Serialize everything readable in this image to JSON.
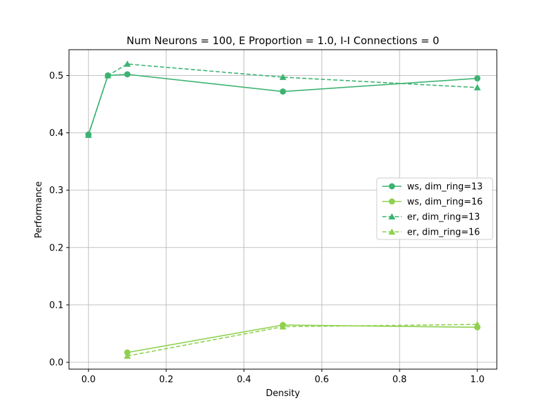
{
  "chart_data": {
    "type": "line",
    "title": "Num Neurons = 100, E Proportion = 1.0, I-I Connections = 0",
    "xlabel": "Density",
    "ylabel": "Performance",
    "xlim": [
      -0.05,
      1.05
    ],
    "ylim": [
      -0.012,
      0.545
    ],
    "xticks": [
      0.0,
      0.2,
      0.4,
      0.6,
      0.8,
      1.0
    ],
    "xtick_labels": [
      "0.0",
      "0.2",
      "0.4",
      "0.6",
      "0.8",
      "1.0"
    ],
    "yticks": [
      0.0,
      0.1,
      0.2,
      0.3,
      0.4,
      0.5
    ],
    "ytick_labels": [
      "0.0",
      "0.1",
      "0.2",
      "0.3",
      "0.4",
      "0.5"
    ],
    "grid": true,
    "legend_position": "center-right",
    "series": [
      {
        "name": "ws, dim_ring=13",
        "color": "#3cb371",
        "linestyle": "solid",
        "marker": "circle",
        "x": [
          0.0,
          0.05,
          0.1,
          0.5,
          1.0
        ],
        "y": [
          0.397,
          0.5,
          0.502,
          0.472,
          0.495
        ]
      },
      {
        "name": "ws, dim_ring=16",
        "color": "#8fd14f",
        "linestyle": "solid",
        "marker": "circle",
        "x": [
          0.1,
          0.5,
          1.0
        ],
        "y": [
          0.017,
          0.065,
          0.061
        ]
      },
      {
        "name": "er, dim_ring=13",
        "color": "#3cb371",
        "linestyle": "dashed",
        "marker": "triangle",
        "x": [
          0.0,
          0.05,
          0.1,
          0.5,
          1.0
        ],
        "y": [
          0.396,
          0.5,
          0.52,
          0.497,
          0.479
        ]
      },
      {
        "name": "er, dim_ring=16",
        "color": "#8fd14f",
        "linestyle": "dashed",
        "marker": "triangle",
        "x": [
          0.1,
          0.5,
          1.0
        ],
        "y": [
          0.011,
          0.062,
          0.066
        ]
      }
    ]
  }
}
